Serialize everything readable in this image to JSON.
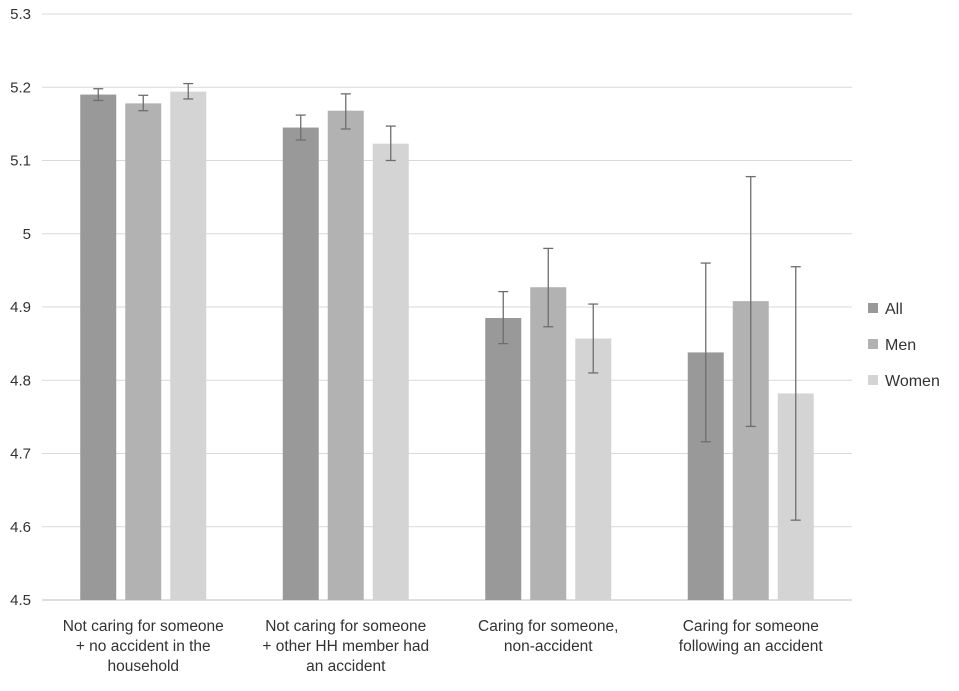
{
  "chart_data": {
    "type": "bar",
    "title": "",
    "xlabel": "",
    "ylabel": "",
    "ylim": [
      4.5,
      5.3
    ],
    "yticks": [
      "5.3",
      "5.2",
      "5.1",
      "5",
      "4.9",
      "4.8",
      "4.7",
      "4.6",
      "4.5"
    ],
    "grid": true,
    "legend_position": "right",
    "categories": [
      [
        "Not caring for someone",
        "+ no accident in the",
        "household"
      ],
      [
        "Not caring for someone",
        "+ other HH member had",
        "an accident"
      ],
      [
        "Caring for someone,",
        "non-accident"
      ],
      [
        "Caring for someone",
        "following an accident"
      ]
    ],
    "series": [
      {
        "name": "All",
        "color": "#999999",
        "values": [
          5.19,
          5.145,
          4.885,
          4.838
        ],
        "error_low": [
          5.182,
          5.128,
          4.85,
          4.716
        ],
        "error_high": [
          5.198,
          5.162,
          4.921,
          4.96
        ]
      },
      {
        "name": "Men",
        "color": "#b2b2b2",
        "values": [
          5.178,
          5.168,
          4.927,
          4.908
        ],
        "error_low": [
          5.168,
          5.143,
          4.873,
          4.737
        ],
        "error_high": [
          5.189,
          5.191,
          4.98,
          5.078
        ]
      },
      {
        "name": "Women",
        "color": "#d4d4d4",
        "values": [
          5.194,
          5.123,
          4.857,
          4.782
        ],
        "error_low": [
          5.184,
          5.1,
          4.81,
          4.609
        ],
        "error_high": [
          5.205,
          5.147,
          4.904,
          4.955
        ]
      }
    ]
  }
}
